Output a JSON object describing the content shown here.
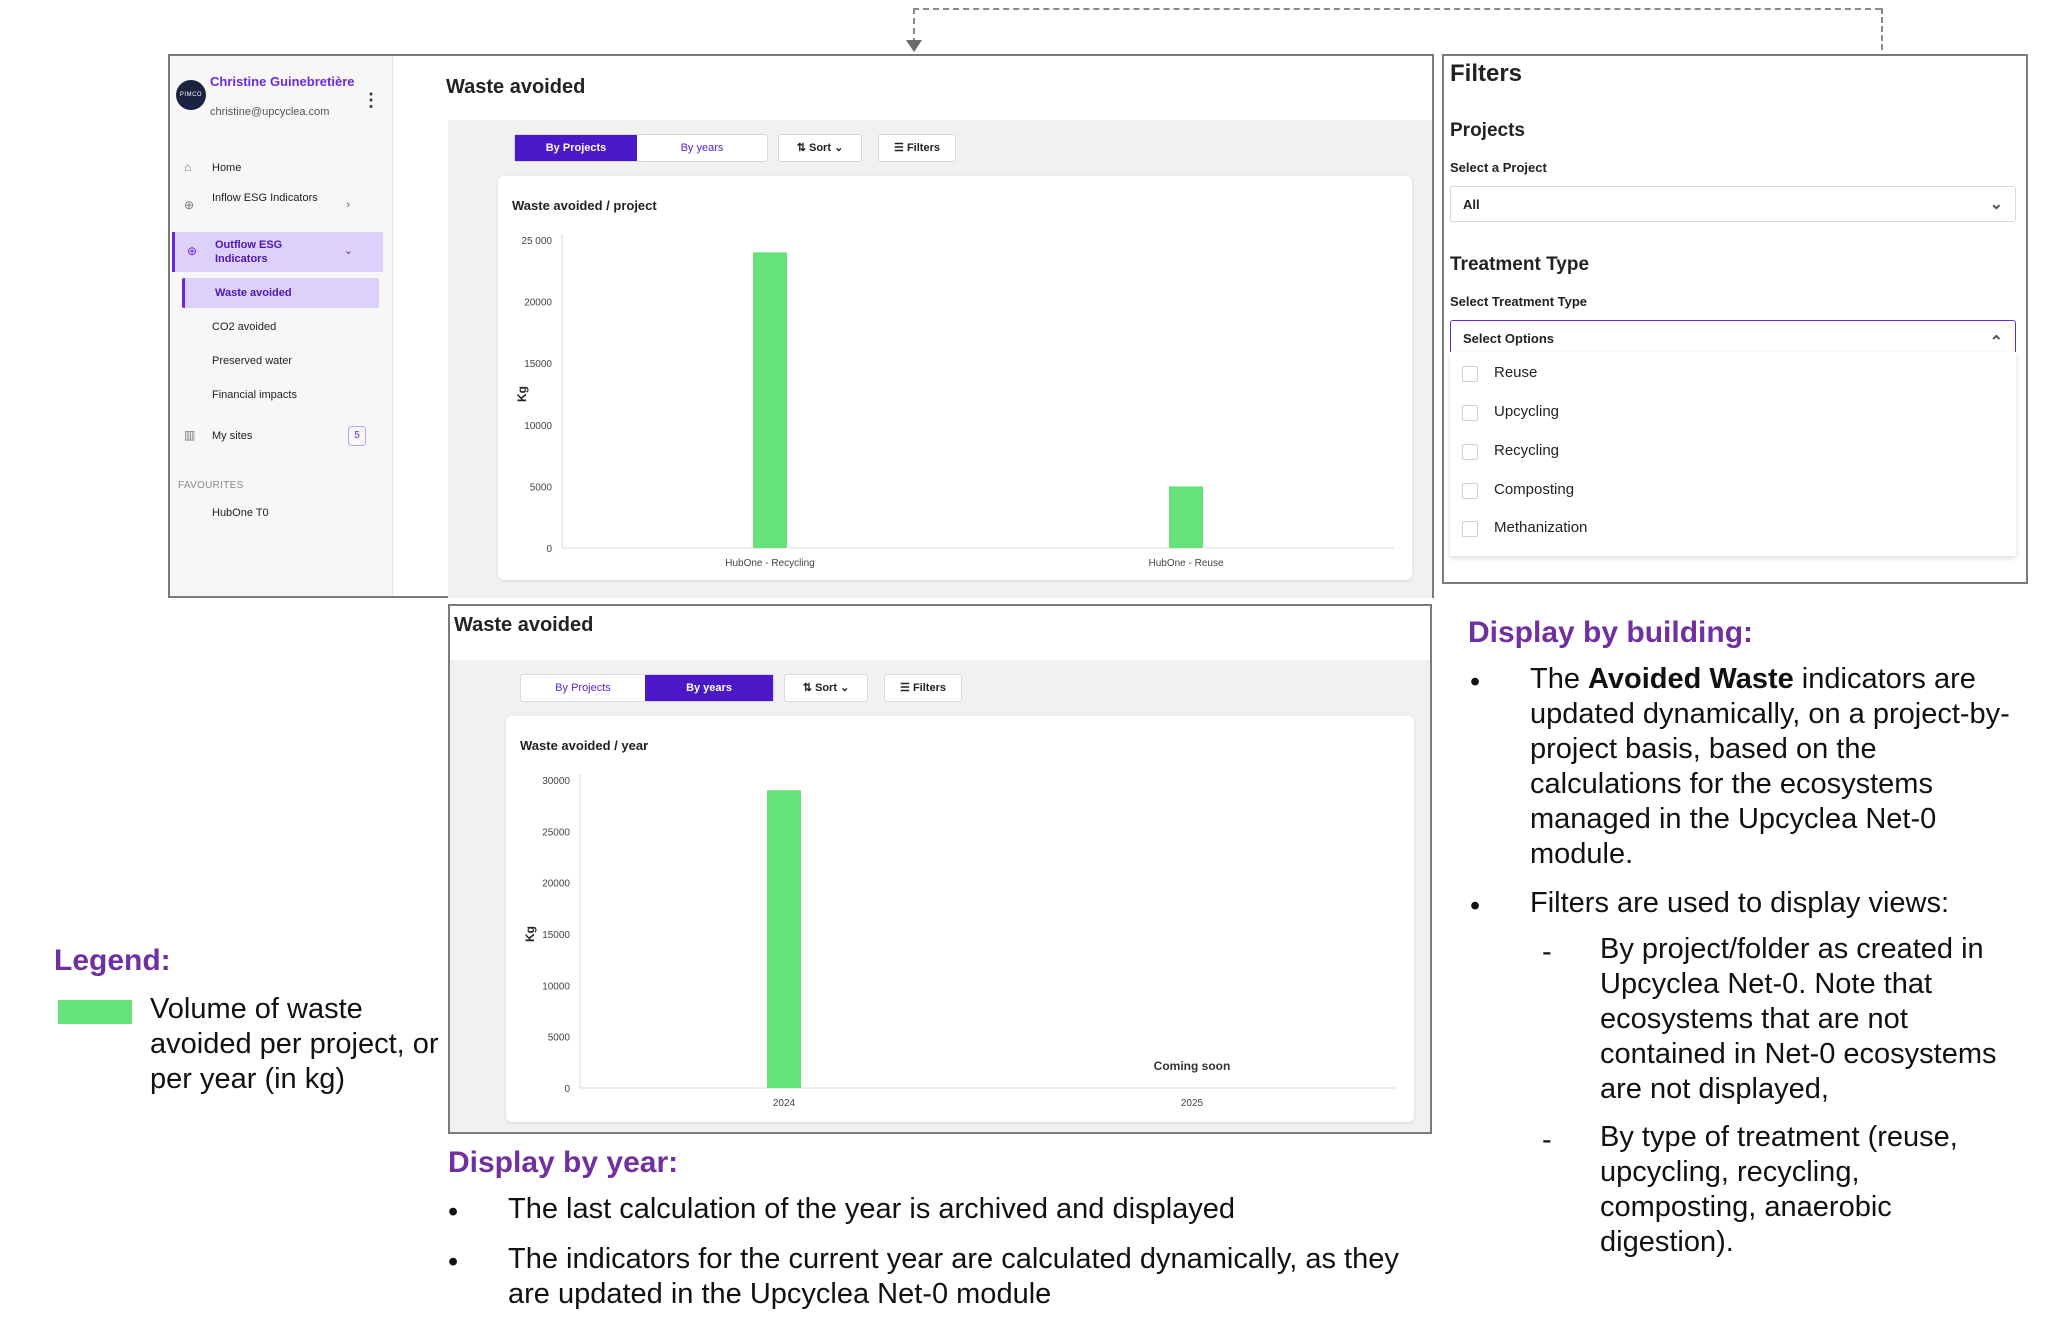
{
  "colors": {
    "accent": "#4a17c9",
    "accent_light": "#ddd0fb",
    "bar": "#66e27a",
    "annotation": "#7030a0"
  },
  "sidebar": {
    "avatar_text": "PIMCO",
    "user_name": "Christine Guinebretière",
    "user_email": "christine@upcyclea.com",
    "menu_icon": "kebab-icon",
    "items": [
      {
        "label": "Home",
        "icon": "home-icon"
      },
      {
        "label": "Inflow ESG Indicators",
        "icon": "arrow-down-circle-icon"
      },
      {
        "label": "Outflow ESG Indicators",
        "icon": "arrow-up-circle-icon"
      }
    ],
    "subitems": [
      "Waste avoided",
      "CO2 avoided",
      "Preserved water",
      "Financial impacts"
    ],
    "my_sites": {
      "label": "My sites",
      "count": "5",
      "icon": "building-icon"
    },
    "favourites_header": "FAVOURITES",
    "favourites": [
      "HubOne T0"
    ]
  },
  "top_view": {
    "title": "Waste avoided",
    "tabs": [
      "By Projects",
      "By years"
    ],
    "sort_label": "Sort",
    "filters_label": "Filters"
  },
  "bottom_view": {
    "title": "Waste avoided",
    "tabs": [
      "By Projects",
      "By years"
    ],
    "sort_label": "Sort",
    "filters_label": "Filters"
  },
  "filter_panel": {
    "title": "Filters",
    "projects_header": "Projects",
    "project_label": "Select a Project",
    "project_value": "All",
    "treatment_header": "Treatment Type",
    "treatment_label": "Select Treatment Type",
    "treatment_placeholder": "Select Options",
    "options": [
      "Reuse",
      "Upcycling",
      "Recycling",
      "Composting",
      "Methanization"
    ]
  },
  "chart_data": [
    {
      "type": "bar",
      "title": "Waste avoided / project",
      "ylabel": "Kg",
      "categories": [
        "HubOne - Recycling",
        "HubOne - Reuse"
      ],
      "values": [
        24000,
        5000
      ],
      "ylim": [
        0,
        25000
      ],
      "yticks": [
        0,
        5000,
        10000,
        15000,
        20000,
        25000
      ],
      "ytick_labels": [
        "0",
        "5000",
        "10000",
        "15000",
        "20000",
        "25 000"
      ],
      "grid": false
    },
    {
      "type": "bar",
      "title": "Waste avoided / year",
      "ylabel": "Kg",
      "categories": [
        "2024",
        "2025"
      ],
      "values": [
        29000,
        null
      ],
      "ylim": [
        0,
        30000
      ],
      "yticks": [
        0,
        5000,
        10000,
        15000,
        20000,
        25000,
        30000
      ],
      "ytick_labels": [
        "0",
        "5000",
        "10000",
        "15000",
        "20000",
        "25000",
        "30000"
      ],
      "annotation": "Coming soon",
      "grid": false
    }
  ],
  "annotations": {
    "building_header": "Display by building:",
    "building_b1_pre": "The ",
    "building_b1_bold": "Avoided Waste",
    "building_b1_post": " indicators are updated dynamically, on a project-by-project basis, based on the calculations for the ecosystems managed in the Upcyclea Net-0 module.",
    "building_b2": "Filters are used to display views:",
    "building_sub1": "By project/folder as created in Upcyclea Net-0. Note that ecosystems that are not contained in Net-0 ecosystems are not displayed,",
    "building_sub2": "By type of treatment (reuse, upcycling, recycling, composting, anaerobic digestion).",
    "year_header": "Display by year:",
    "year_b1": "The last calculation of the year is archived and displayed",
    "year_b2": "The indicators for the current year are calculated dynamically, as they are updated in the Upcyclea Net-0 module",
    "legend_header": "Legend:",
    "legend_text": "Volume of waste avoided per project, or per year (in kg)",
    "bullet": "•",
    "dash": "-"
  }
}
